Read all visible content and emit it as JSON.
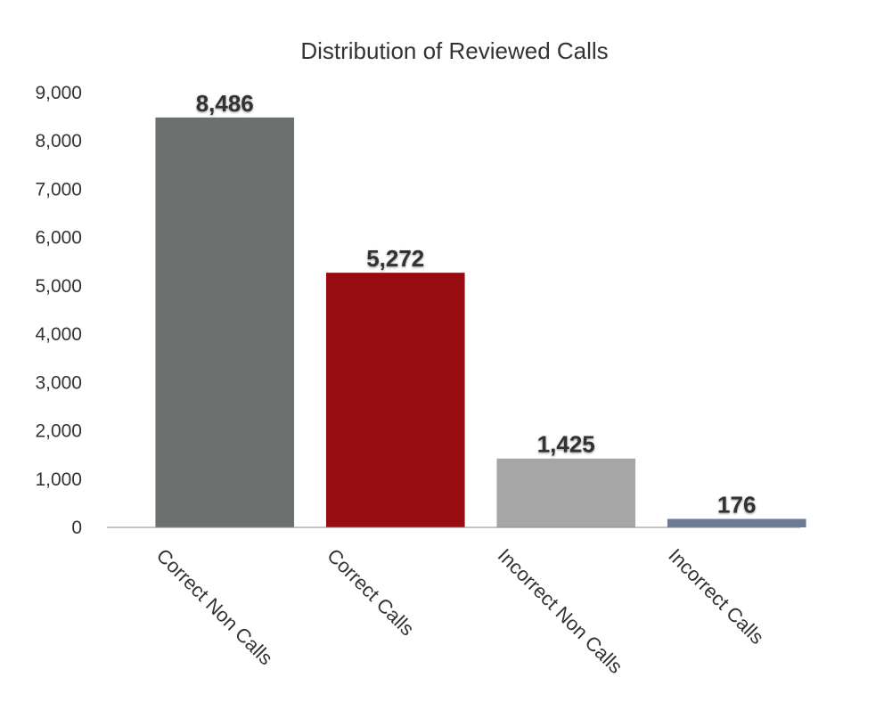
{
  "chart_data": {
    "type": "bar",
    "title": "Distribution of Reviewed Calls",
    "xlabel": "",
    "ylabel": "",
    "categories": [
      "Correct Non Calls",
      "Correct Calls",
      "Incorrect Non Calls",
      "Incorrect Calls"
    ],
    "values": [
      8486,
      5272,
      1425,
      176
    ],
    "data_labels": [
      "8,486",
      "5,272",
      "1,425",
      "176"
    ],
    "bar_colors": [
      "#6c706e",
      "#980b11",
      "#a6a6a6",
      "#6c7b94"
    ],
    "ylim": [
      0,
      9000
    ],
    "yticks": [
      0,
      1000,
      2000,
      3000,
      4000,
      5000,
      6000,
      7000,
      8000,
      9000
    ],
    "ytick_labels": [
      "0",
      "1,000",
      "2,000",
      "3,000",
      "4,000",
      "5,000",
      "6,000",
      "7,000",
      "8,000",
      "9,000"
    ],
    "grid": false,
    "legend": "none",
    "colors": {
      "text": "#333333",
      "axis": "#888888"
    }
  }
}
